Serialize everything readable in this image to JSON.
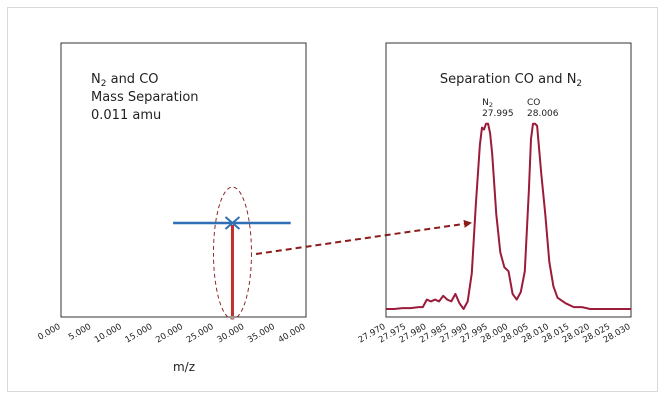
{
  "chart_data": [
    {
      "type": "line",
      "title_parts": {
        "n": "N",
        "sub": "2",
        "rest": " and CO"
      },
      "subtitle_lines": [
        "Mass Separation",
        "0.011 amu"
      ],
      "xlabel": "m/z",
      "xlim": [
        0,
        40
      ],
      "x_ticks": [
        "0.000",
        "5.000",
        "10.000",
        "15.000",
        "20.000",
        "25.000",
        "30.000",
        "35.000",
        "40.000"
      ],
      "peak_x": 27.995,
      "error_bar": {
        "x_min": 18.3,
        "x_max": 37.5
      },
      "annotation": "dashed ellipse around peak with arrow to zoomed spectrum"
    },
    {
      "type": "line",
      "title_parts": {
        "text": "Separation CO and N",
        "sub": "2"
      },
      "xlim": [
        27.97,
        28.03
      ],
      "ylim": [
        0,
        1
      ],
      "x_ticks": [
        "27.970",
        "27.975",
        "27.980",
        "27.985",
        "27.990",
        "27.995",
        "28.000",
        "28.005",
        "28.010",
        "28.015",
        "28.020",
        "28.025",
        "28.030"
      ],
      "peak_labels": [
        {
          "name": "N",
          "sub": "2",
          "value": "27.995",
          "x": 27.995
        },
        {
          "name": "CO",
          "sub": "",
          "value": "28.006",
          "x": 28.006
        }
      ],
      "series": [
        {
          "color": "#9b1b3a",
          "x": [
            27.97,
            27.972,
            27.974,
            27.976,
            27.978,
            27.979,
            27.98,
            27.981,
            27.982,
            27.983,
            27.984,
            27.985,
            27.986,
            27.987,
            27.988,
            27.989,
            27.99,
            27.991,
            27.992,
            27.993,
            27.9935,
            27.994,
            27.9945,
            27.995,
            27.9955,
            27.996,
            27.997,
            27.998,
            27.999,
            28.0,
            28.001,
            28.002,
            28.003,
            28.004,
            28.005,
            28.0055,
            28.006,
            28.0065,
            28.007,
            28.008,
            28.009,
            28.01,
            28.011,
            28.012,
            28.014,
            28.016,
            28.018,
            28.02,
            28.022,
            28.024,
            28.026,
            28.028,
            28.03
          ],
          "values": [
            0.0,
            0.0,
            0.005,
            0.005,
            0.01,
            0.01,
            0.05,
            0.04,
            0.05,
            0.04,
            0.07,
            0.05,
            0.04,
            0.08,
            0.03,
            0.0,
            0.04,
            0.19,
            0.55,
            0.87,
            0.96,
            0.95,
            0.98,
            0.98,
            0.93,
            0.82,
            0.5,
            0.3,
            0.22,
            0.2,
            0.08,
            0.05,
            0.09,
            0.2,
            0.63,
            0.9,
            0.98,
            0.98,
            0.97,
            0.72,
            0.5,
            0.25,
            0.12,
            0.06,
            0.03,
            0.01,
            0.01,
            0.0,
            0.0,
            0.0,
            0.0,
            0.0,
            0.0
          ]
        }
      ]
    }
  ],
  "colors": {
    "accent": "#9b1b3a",
    "arrow": "#8c1b1b",
    "error_bar": "#2e6fb5",
    "peak_bar": "#c0302b",
    "ellipse": "#8c2a2a"
  }
}
